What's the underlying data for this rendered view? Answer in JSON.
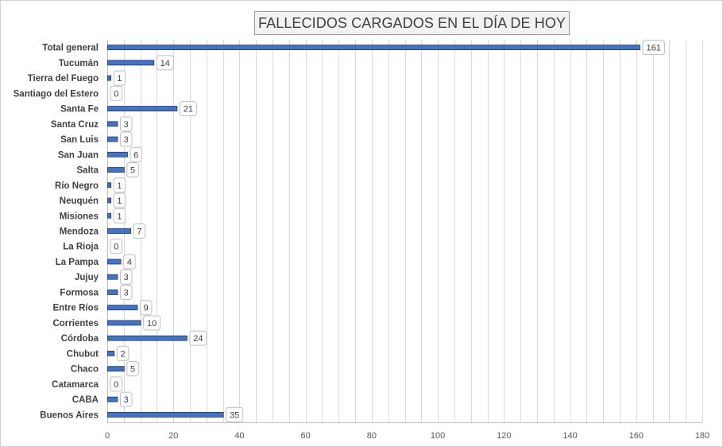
{
  "chart_data": {
    "type": "bar",
    "orientation": "horizontal",
    "title": "FALLECIDOS CARGADOS EN EL DÍA DE HOY",
    "categories": [
      "Total general",
      "Tucumán",
      "Tierra del Fuego",
      "Santiago del Estero",
      "Santa Fe",
      "Santa Cruz",
      "San Luis",
      "San Juan",
      "Salta",
      "Río Negro",
      "Neuquén",
      "Misiones",
      "Mendoza",
      "La Rioja",
      "La Pampa",
      "Jujuy",
      "Formosa",
      "Entre Ríos",
      "Corrientes",
      "Córdoba",
      "Chubut",
      "Chaco",
      "Catamarca",
      "CABA",
      "Buenos Aires"
    ],
    "values": [
      161,
      14,
      1,
      0,
      21,
      3,
      3,
      6,
      5,
      1,
      1,
      1,
      7,
      0,
      4,
      3,
      3,
      9,
      10,
      24,
      2,
      5,
      0,
      3,
      35
    ],
    "xlim": [
      0,
      180
    ],
    "xticks": [
      0,
      20,
      40,
      60,
      80,
      100,
      120,
      140,
      160,
      180
    ],
    "grid": true,
    "legend": "none",
    "bar_color": "#4472c4",
    "data_labels": true
  }
}
